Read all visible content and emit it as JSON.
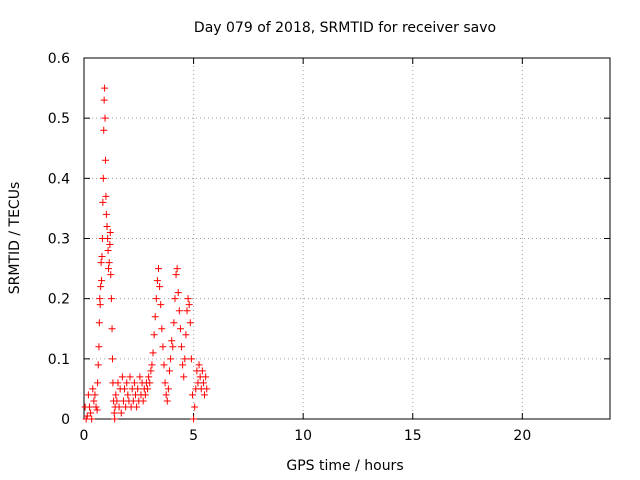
{
  "chart_data": {
    "type": "scatter",
    "title": "Day 079 of 2018, SRMTID for receiver savo",
    "xlabel": "GPS time / hours",
    "ylabel": "SRMTID / TECUs",
    "xlim": [
      0,
      24
    ],
    "ylim": [
      0,
      0.6
    ],
    "xticks": [
      "0",
      "5",
      "10",
      "15",
      "20"
    ],
    "xtick_values": [
      0,
      5,
      10,
      15,
      20
    ],
    "yticks": [
      "0",
      "0.1",
      "0.2",
      "0.3",
      "0.4",
      "0.5",
      "0.6"
    ],
    "ytick_values": [
      0,
      0.1,
      0.2,
      0.3,
      0.4,
      0.5,
      0.6
    ],
    "grid": true,
    "marker": "+",
    "color": "#ff0000",
    "series": [
      {
        "name": "SRMTID",
        "points": [
          [
            0.05,
            0.02
          ],
          [
            0.1,
            0.0
          ],
          [
            0.15,
            0.005
          ],
          [
            0.2,
            0.04
          ],
          [
            0.25,
            0.02
          ],
          [
            0.3,
            0.01
          ],
          [
            0.35,
            0.0
          ],
          [
            0.4,
            0.05
          ],
          [
            0.45,
            0.03
          ],
          [
            0.5,
            0.04
          ],
          [
            0.55,
            0.02
          ],
          [
            0.6,
            0.015
          ],
          [
            0.62,
            0.06
          ],
          [
            0.65,
            0.09
          ],
          [
            0.68,
            0.12
          ],
          [
            0.7,
            0.16
          ],
          [
            0.72,
            0.2
          ],
          [
            0.74,
            0.19
          ],
          [
            0.76,
            0.22
          ],
          [
            0.78,
            0.26
          ],
          [
            0.8,
            0.23
          ],
          [
            0.82,
            0.27
          ],
          [
            0.84,
            0.3
          ],
          [
            0.86,
            0.36
          ],
          [
            0.88,
            0.4
          ],
          [
            0.9,
            0.48
          ],
          [
            0.92,
            0.53
          ],
          [
            0.94,
            0.55
          ],
          [
            0.96,
            0.5
          ],
          [
            0.98,
            0.43
          ],
          [
            1.0,
            0.37
          ],
          [
            1.02,
            0.34
          ],
          [
            1.05,
            0.32
          ],
          [
            1.08,
            0.3
          ],
          [
            1.1,
            0.28
          ],
          [
            1.12,
            0.25
          ],
          [
            1.15,
            0.26
          ],
          [
            1.18,
            0.29
          ],
          [
            1.2,
            0.31
          ],
          [
            1.22,
            0.24
          ],
          [
            1.25,
            0.2
          ],
          [
            1.28,
            0.15
          ],
          [
            1.3,
            0.1
          ],
          [
            1.32,
            0.06
          ],
          [
            1.35,
            0.03
          ],
          [
            1.38,
            0.01
          ],
          [
            1.4,
            0.0
          ],
          [
            1.42,
            0.02
          ],
          [
            1.45,
            0.04
          ],
          [
            1.5,
            0.03
          ],
          [
            1.55,
            0.06
          ],
          [
            1.6,
            0.02
          ],
          [
            1.65,
            0.05
          ],
          [
            1.7,
            0.01
          ],
          [
            1.75,
            0.07
          ],
          [
            1.8,
            0.03
          ],
          [
            1.85,
            0.05
          ],
          [
            1.9,
            0.02
          ],
          [
            1.95,
            0.06
          ],
          [
            2.0,
            0.04
          ],
          [
            2.05,
            0.03
          ],
          [
            2.1,
            0.07
          ],
          [
            2.15,
            0.02
          ],
          [
            2.2,
            0.05
          ],
          [
            2.25,
            0.03
          ],
          [
            2.3,
            0.06
          ],
          [
            2.35,
            0.04
          ],
          [
            2.4,
            0.02
          ],
          [
            2.45,
            0.05
          ],
          [
            2.5,
            0.03
          ],
          [
            2.55,
            0.07
          ],
          [
            2.6,
            0.04
          ],
          [
            2.65,
            0.06
          ],
          [
            2.7,
            0.03
          ],
          [
            2.75,
            0.05
          ],
          [
            2.8,
            0.04
          ],
          [
            2.85,
            0.06
          ],
          [
            2.9,
            0.05
          ],
          [
            2.95,
            0.07
          ],
          [
            3.0,
            0.06
          ],
          [
            3.05,
            0.08
          ],
          [
            3.1,
            0.09
          ],
          [
            3.15,
            0.11
          ],
          [
            3.2,
            0.14
          ],
          [
            3.25,
            0.17
          ],
          [
            3.3,
            0.2
          ],
          [
            3.35,
            0.23
          ],
          [
            3.4,
            0.25
          ],
          [
            3.45,
            0.22
          ],
          [
            3.5,
            0.19
          ],
          [
            3.55,
            0.15
          ],
          [
            3.6,
            0.12
          ],
          [
            3.65,
            0.09
          ],
          [
            3.7,
            0.06
          ],
          [
            3.75,
            0.04
          ],
          [
            3.8,
            0.03
          ],
          [
            3.85,
            0.05
          ],
          [
            3.9,
            0.08
          ],
          [
            3.95,
            0.1
          ],
          [
            4.0,
            0.13
          ],
          [
            4.05,
            0.12
          ],
          [
            4.1,
            0.16
          ],
          [
            4.15,
            0.2
          ],
          [
            4.2,
            0.24
          ],
          [
            4.25,
            0.25
          ],
          [
            4.3,
            0.21
          ],
          [
            4.35,
            0.18
          ],
          [
            4.4,
            0.15
          ],
          [
            4.45,
            0.12
          ],
          [
            4.5,
            0.09
          ],
          [
            4.55,
            0.07
          ],
          [
            4.6,
            0.1
          ],
          [
            4.65,
            0.14
          ],
          [
            4.7,
            0.18
          ],
          [
            4.75,
            0.2
          ],
          [
            4.8,
            0.19
          ],
          [
            4.85,
            0.16
          ],
          [
            4.9,
            0.1
          ],
          [
            4.95,
            0.04
          ],
          [
            5.0,
            0.0
          ],
          [
            5.05,
            0.02
          ],
          [
            5.1,
            0.05
          ],
          [
            5.15,
            0.08
          ],
          [
            5.2,
            0.06
          ],
          [
            5.25,
            0.09
          ],
          [
            5.3,
            0.07
          ],
          [
            5.35,
            0.05
          ],
          [
            5.4,
            0.08
          ],
          [
            5.45,
            0.06
          ],
          [
            5.5,
            0.04
          ],
          [
            5.55,
            0.07
          ],
          [
            5.6,
            0.05
          ]
        ]
      }
    ]
  }
}
